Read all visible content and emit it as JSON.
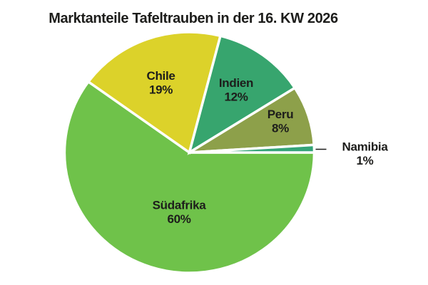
{
  "title": "Marktanteile Tafeltrauben in der 16. KW 2026",
  "chart_data": {
    "type": "pie",
    "title": "Marktanteile Tafeltrauben in der 16. KW 2026",
    "unit": "%",
    "start_angle_deg": 0,
    "direction": "clockwise",
    "label_format": "{label} {value}%",
    "text_color": "#1d1d1b",
    "background": "#ffffff",
    "slices": [
      {
        "label": "Südafrika",
        "value": 60,
        "color": "#6fc24a",
        "label_outside": false
      },
      {
        "label": "Chile",
        "value": 19,
        "color": "#dcd22a",
        "label_outside": false
      },
      {
        "label": "Indien",
        "value": 12,
        "color": "#37a56e",
        "label_outside": false
      },
      {
        "label": "Peru",
        "value": 8,
        "color": "#8da04a",
        "label_outside": false
      },
      {
        "label": "Namibia",
        "value": 1,
        "color": "#34a478",
        "label_outside": true
      }
    ]
  }
}
